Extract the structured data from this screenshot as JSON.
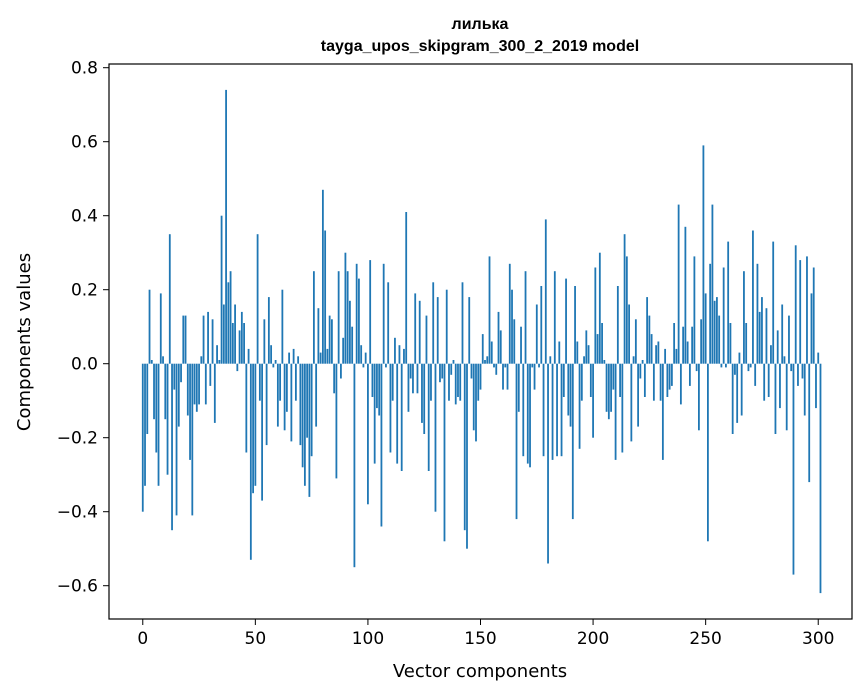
{
  "chart_data": {
    "type": "bar",
    "title": "лилька",
    "subtitle": "tayga_upos_skipgram_300_2_2019 model",
    "xlabel": "Vector components",
    "ylabel": "Components values",
    "xlim": [
      -15,
      315
    ],
    "ylim": [
      -0.69,
      0.81
    ],
    "xticks": [
      0,
      50,
      100,
      150,
      200,
      250,
      300
    ],
    "xtick_labels": [
      "0",
      "50",
      "100",
      "150",
      "200",
      "250",
      "300"
    ],
    "yticks": [
      -0.6,
      -0.4,
      -0.2,
      0.0,
      0.2,
      0.4,
      0.6,
      0.8
    ],
    "ytick_labels": [
      "−0.6",
      "−0.4",
      "−0.2",
      "0.0",
      "0.2",
      "0.4",
      "0.6",
      "0.8"
    ],
    "bar_color": "#1f77b4",
    "series": [
      {
        "name": "лилька",
        "x_start": 0,
        "values": [
          -0.4,
          -0.33,
          -0.19,
          0.2,
          0.01,
          -0.15,
          -0.24,
          -0.33,
          0.19,
          0.02,
          -0.15,
          -0.3,
          0.35,
          -0.45,
          -0.07,
          -0.41,
          -0.17,
          -0.05,
          0.13,
          0.13,
          -0.14,
          -0.26,
          -0.41,
          -0.11,
          -0.13,
          -0.11,
          0.02,
          0.13,
          -0.11,
          0.14,
          -0.06,
          0.12,
          -0.16,
          0.05,
          0.01,
          0.4,
          0.16,
          0.74,
          0.22,
          0.25,
          0.11,
          0.16,
          -0.02,
          0.09,
          0.14,
          0.11,
          -0.24,
          0.04,
          -0.53,
          -0.35,
          -0.33,
          0.35,
          -0.1,
          -0.37,
          0.12,
          -0.22,
          0.18,
          0.05,
          -0.01,
          0.01,
          -0.17,
          -0.1,
          0.2,
          -0.18,
          -0.13,
          0.03,
          -0.21,
          0.04,
          -0.1,
          0.02,
          -0.22,
          -0.28,
          -0.33,
          -0.2,
          -0.36,
          -0.25,
          0.25,
          -0.17,
          0.15,
          0.03,
          0.47,
          0.36,
          0.04,
          0.13,
          0.12,
          -0.08,
          -0.31,
          0.25,
          -0.04,
          0.07,
          0.3,
          0.25,
          0.17,
          0.1,
          -0.55,
          0.27,
          0.23,
          0.05,
          -0.01,
          0.03,
          -0.38,
          0.28,
          -0.09,
          -0.27,
          -0.12,
          -0.14,
          -0.44,
          0.27,
          -0.01,
          0.22,
          -0.24,
          -0.1,
          0.07,
          -0.27,
          0.05,
          -0.29,
          0.04,
          0.41,
          -0.13,
          -0.04,
          -0.08,
          0.19,
          -0.08,
          0.17,
          -0.16,
          -0.19,
          0.13,
          -0.29,
          -0.1,
          0.22,
          -0.4,
          0.18,
          -0.05,
          -0.04,
          -0.48,
          0.2,
          -0.1,
          -0.03,
          0.01,
          -0.11,
          -0.09,
          -0.1,
          0.22,
          -0.45,
          -0.5,
          0.18,
          -0.04,
          -0.18,
          -0.21,
          -0.1,
          -0.07,
          0.08,
          0.01,
          0.02,
          0.29,
          0.06,
          -0.01,
          -0.03,
          0.14,
          0.09,
          -0.07,
          -0.01,
          -0.07,
          0.27,
          0.2,
          0.12,
          -0.42,
          -0.13,
          0.1,
          -0.25,
          0.25,
          -0.27,
          -0.28,
          -0.01,
          -0.07,
          0.16,
          -0.01,
          0.21,
          -0.25,
          0.39,
          -0.54,
          0.02,
          -0.26,
          0.25,
          -0.25,
          0.06,
          -0.25,
          -0.09,
          0.23,
          -0.14,
          -0.17,
          -0.42,
          0.21,
          0.06,
          -0.23,
          -0.1,
          0.02,
          0.09,
          0.05,
          -0.09,
          -0.2,
          0.26,
          0.08,
          0.3,
          0.11,
          0.01,
          -0.13,
          -0.15,
          -0.13,
          -0.07,
          -0.26,
          0.21,
          -0.09,
          -0.24,
          0.35,
          0.29,
          0.16,
          -0.21,
          0.02,
          0.12,
          -0.17,
          -0.04,
          0.01,
          -0.09,
          0.18,
          0.13,
          0.08,
          -0.1,
          0.05,
          0.06,
          -0.1,
          -0.26,
          0.04,
          -0.09,
          -0.07,
          -0.06,
          0.11,
          0.04,
          0.43,
          -0.11,
          0.1,
          0.37,
          0.06,
          -0.06,
          0.1,
          0.29,
          -0.02,
          -0.18,
          0.12,
          0.59,
          0.19,
          -0.48,
          0.27,
          0.43,
          0.17,
          0.18,
          0.13,
          -0.01,
          0.26,
          -0.01,
          0.33,
          0.11,
          -0.19,
          -0.03,
          -0.16,
          0.03,
          -0.14,
          0.25,
          0.11,
          -0.02,
          -0.01,
          0.36,
          -0.06,
          0.27,
          0.14,
          0.18,
          -0.1,
          0.15,
          -0.09,
          0.05,
          0.33,
          -0.19,
          0.09,
          -0.12,
          0.16,
          0.02,
          -0.18,
          0.13,
          -0.02,
          -0.57,
          0.32,
          -0.06,
          0.28,
          -0.04,
          -0.14,
          0.29,
          -0.32,
          0.19,
          0.26,
          -0.12,
          0.03,
          -0.62
        ]
      }
    ]
  }
}
